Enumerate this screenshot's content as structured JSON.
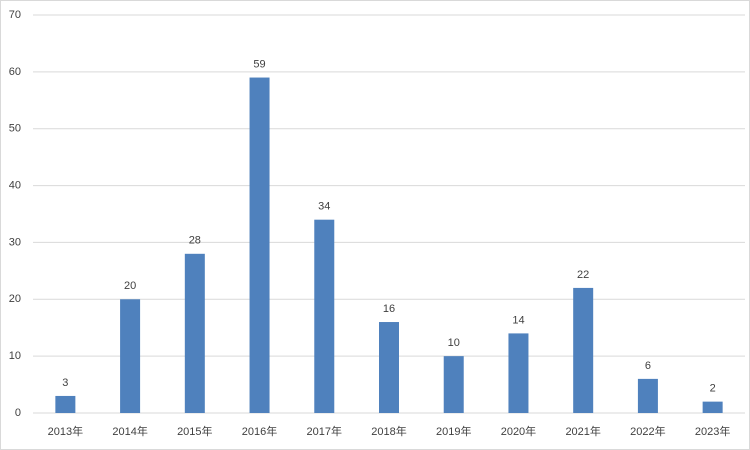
{
  "chart_data": {
    "type": "bar",
    "categories": [
      "2013年",
      "2014年",
      "2015年",
      "2016年",
      "2017年",
      "2018年",
      "2019年",
      "2020年",
      "2021年",
      "2022年",
      "2023年"
    ],
    "values": [
      3,
      20,
      28,
      59,
      34,
      16,
      10,
      14,
      22,
      6,
      2
    ],
    "color": "#4f81bd",
    "ylim": [
      0,
      70
    ],
    "yticks": [
      0,
      10,
      20,
      30,
      40,
      50,
      60,
      70
    ],
    "grid": true
  }
}
